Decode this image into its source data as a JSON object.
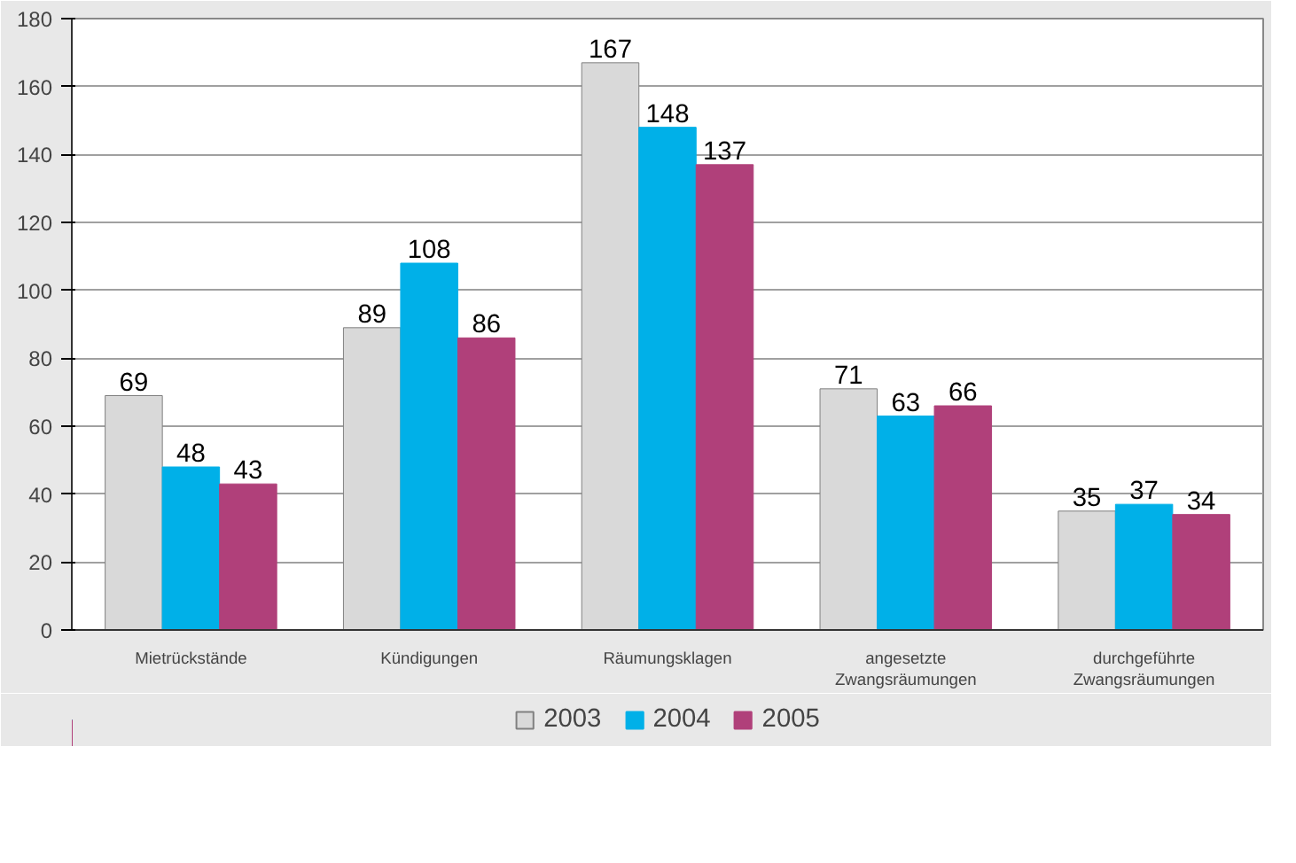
{
  "chart_data": {
    "type": "bar",
    "categories": [
      "Mietrückstände",
      "Kündigungen",
      "Räumungsklagen",
      "angesetzte\nZwangsräumungen",
      "durchgeführte\nZwangsräumungen"
    ],
    "series": [
      {
        "name": "2003",
        "color": "#d9d9d9",
        "values": [
          69,
          89,
          167,
          71,
          35
        ]
      },
      {
        "name": "2004",
        "color": "#00b0e8",
        "values": [
          48,
          108,
          148,
          63,
          37
        ]
      },
      {
        "name": "2005",
        "color": "#b0407a",
        "values": [
          43,
          86,
          137,
          66,
          34
        ]
      }
    ],
    "ylim": [
      0,
      180
    ],
    "yticks": [
      0,
      20,
      40,
      60,
      80,
      100,
      120,
      140,
      160,
      180
    ],
    "grid": "y",
    "legend": "bottom",
    "data_labels": true
  }
}
